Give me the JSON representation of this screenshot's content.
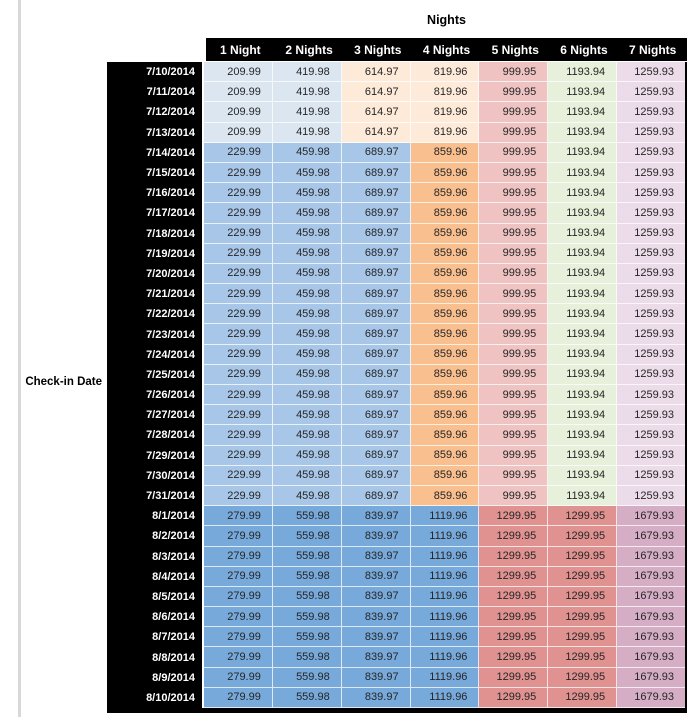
{
  "header": {
    "title": "Nights"
  },
  "axis": {
    "row_label": "Check-in Date"
  },
  "colors": {
    "header_bg": "#000000",
    "header_text": "#ffffff",
    "price_text": "#262626",
    "gridline": "rgba(255,255,255,0.75)",
    "edge_line": "#d8d8d8",
    "light_blue": "#dce6f1",
    "light_orange": "#fdead9",
    "mid_blue": "#a8c6e8",
    "mid_orange": "#fabf8f",
    "pink": "#eec3c2",
    "green": "#e6f0da",
    "lavender": "#ecdbe9",
    "dark_blue": "#77a9db",
    "salmon": "#e09291",
    "mauve": "#d5aec6"
  },
  "table": {
    "columns": [
      "1 Night",
      "2 Nights",
      "3 Nights",
      "4 Nights",
      "5 Nights",
      "6 Nights",
      "7 Nights"
    ],
    "bands": {
      "early_july": {
        "values": [
          "209.99",
          "419.98",
          "614.97",
          "819.96",
          "999.95",
          "1193.94",
          "1259.93"
        ],
        "colors": [
          "#dce6f1",
          "#dce6f1",
          "#fdead9",
          "#fdead9",
          "#eec3c2",
          "#e6f0da",
          "#ecdbe9"
        ]
      },
      "late_july": {
        "values": [
          "229.99",
          "459.98",
          "689.97",
          "859.96",
          "999.95",
          "1193.94",
          "1259.93"
        ],
        "colors": [
          "#a8c6e8",
          "#a8c6e8",
          "#a8c6e8",
          "#fabf8f",
          "#eec3c2",
          "#e6f0da",
          "#ecdbe9"
        ]
      },
      "august": {
        "values": [
          "279.99",
          "559.98",
          "839.97",
          "1119.96",
          "1299.95",
          "1299.95",
          "1679.93"
        ],
        "colors": [
          "#77a9db",
          "#77a9db",
          "#77a9db",
          "#77a9db",
          "#e09291",
          "#e09291",
          "#d5aec6"
        ]
      }
    },
    "rows": [
      {
        "date": "7/10/2014",
        "band": "early_july"
      },
      {
        "date": "7/11/2014",
        "band": "early_july"
      },
      {
        "date": "7/12/2014",
        "band": "early_july"
      },
      {
        "date": "7/13/2014",
        "band": "early_july"
      },
      {
        "date": "7/14/2014",
        "band": "late_july"
      },
      {
        "date": "7/15/2014",
        "band": "late_july"
      },
      {
        "date": "7/16/2014",
        "band": "late_july"
      },
      {
        "date": "7/17/2014",
        "band": "late_july"
      },
      {
        "date": "7/18/2014",
        "band": "late_july"
      },
      {
        "date": "7/19/2014",
        "band": "late_july"
      },
      {
        "date": "7/20/2014",
        "band": "late_july"
      },
      {
        "date": "7/21/2014",
        "band": "late_july"
      },
      {
        "date": "7/22/2014",
        "band": "late_july"
      },
      {
        "date": "7/23/2014",
        "band": "late_july"
      },
      {
        "date": "7/24/2014",
        "band": "late_july"
      },
      {
        "date": "7/25/2014",
        "band": "late_july"
      },
      {
        "date": "7/26/2014",
        "band": "late_july"
      },
      {
        "date": "7/27/2014",
        "band": "late_july"
      },
      {
        "date": "7/28/2014",
        "band": "late_july"
      },
      {
        "date": "7/29/2014",
        "band": "late_july"
      },
      {
        "date": "7/30/2014",
        "band": "late_july"
      },
      {
        "date": "7/31/2014",
        "band": "late_july"
      },
      {
        "date": "8/1/2014",
        "band": "august"
      },
      {
        "date": "8/2/2014",
        "band": "august"
      },
      {
        "date": "8/3/2014",
        "band": "august"
      },
      {
        "date": "8/4/2014",
        "band": "august"
      },
      {
        "date": "8/5/2014",
        "band": "august"
      },
      {
        "date": "8/6/2014",
        "band": "august"
      },
      {
        "date": "8/7/2014",
        "band": "august"
      },
      {
        "date": "8/8/2014",
        "band": "august"
      },
      {
        "date": "8/9/2014",
        "band": "august"
      },
      {
        "date": "8/10/2014",
        "band": "august"
      }
    ]
  }
}
